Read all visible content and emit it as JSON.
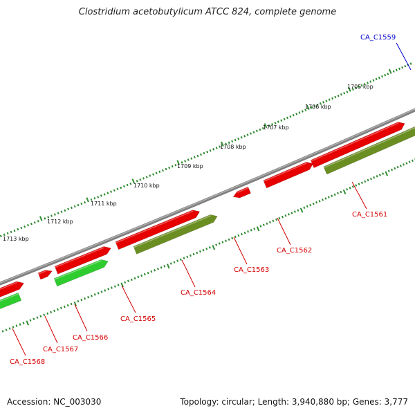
{
  "title": "Clostridium acetobutylicum ATCC 824, complete genome",
  "footer": {
    "accession": "Accession: NC_003030",
    "summary": "Topology: circular; Length: 3,940,880 bp; Genes: 3,777"
  },
  "colors": {
    "backbone": "#808080",
    "ticks": "#2e8b2e",
    "forward_gene": "#e60000",
    "reverse_gene_olive": "#6b8e23",
    "reverse_gene_green": "#2ecc2e",
    "label_red": "#d40000",
    "label_blue": "#0000cc"
  },
  "scale": {
    "unit": "kbp",
    "ticks": [
      "1705 kbp",
      "1706 kbp",
      "1707 kbp",
      "1708 kbp",
      "1709 kbp",
      "1710 kbp",
      "1711 kbp",
      "1712 kbp",
      "1713 kbp"
    ]
  },
  "genes": [
    {
      "label": "CA_C1559",
      "strand": "reverse",
      "color": "blue"
    },
    {
      "label": "CA_C1561",
      "strand": "reverse",
      "color": "olive"
    },
    {
      "label": "CA_C1562",
      "strand": "forward",
      "color": "red"
    },
    {
      "label": "CA_C1563",
      "strand": "forward",
      "color": "red"
    },
    {
      "label": "CA_C1564",
      "strand": "reverse",
      "color": "olive"
    },
    {
      "label": "CA_C1565",
      "strand": "forward",
      "color": "red"
    },
    {
      "label": "CA_C1566",
      "strand": "reverse",
      "color": "green"
    },
    {
      "label": "CA_C1567",
      "strand": "forward",
      "color": "red"
    },
    {
      "label": "CA_C1568",
      "strand": "reverse",
      "color": "green"
    }
  ]
}
